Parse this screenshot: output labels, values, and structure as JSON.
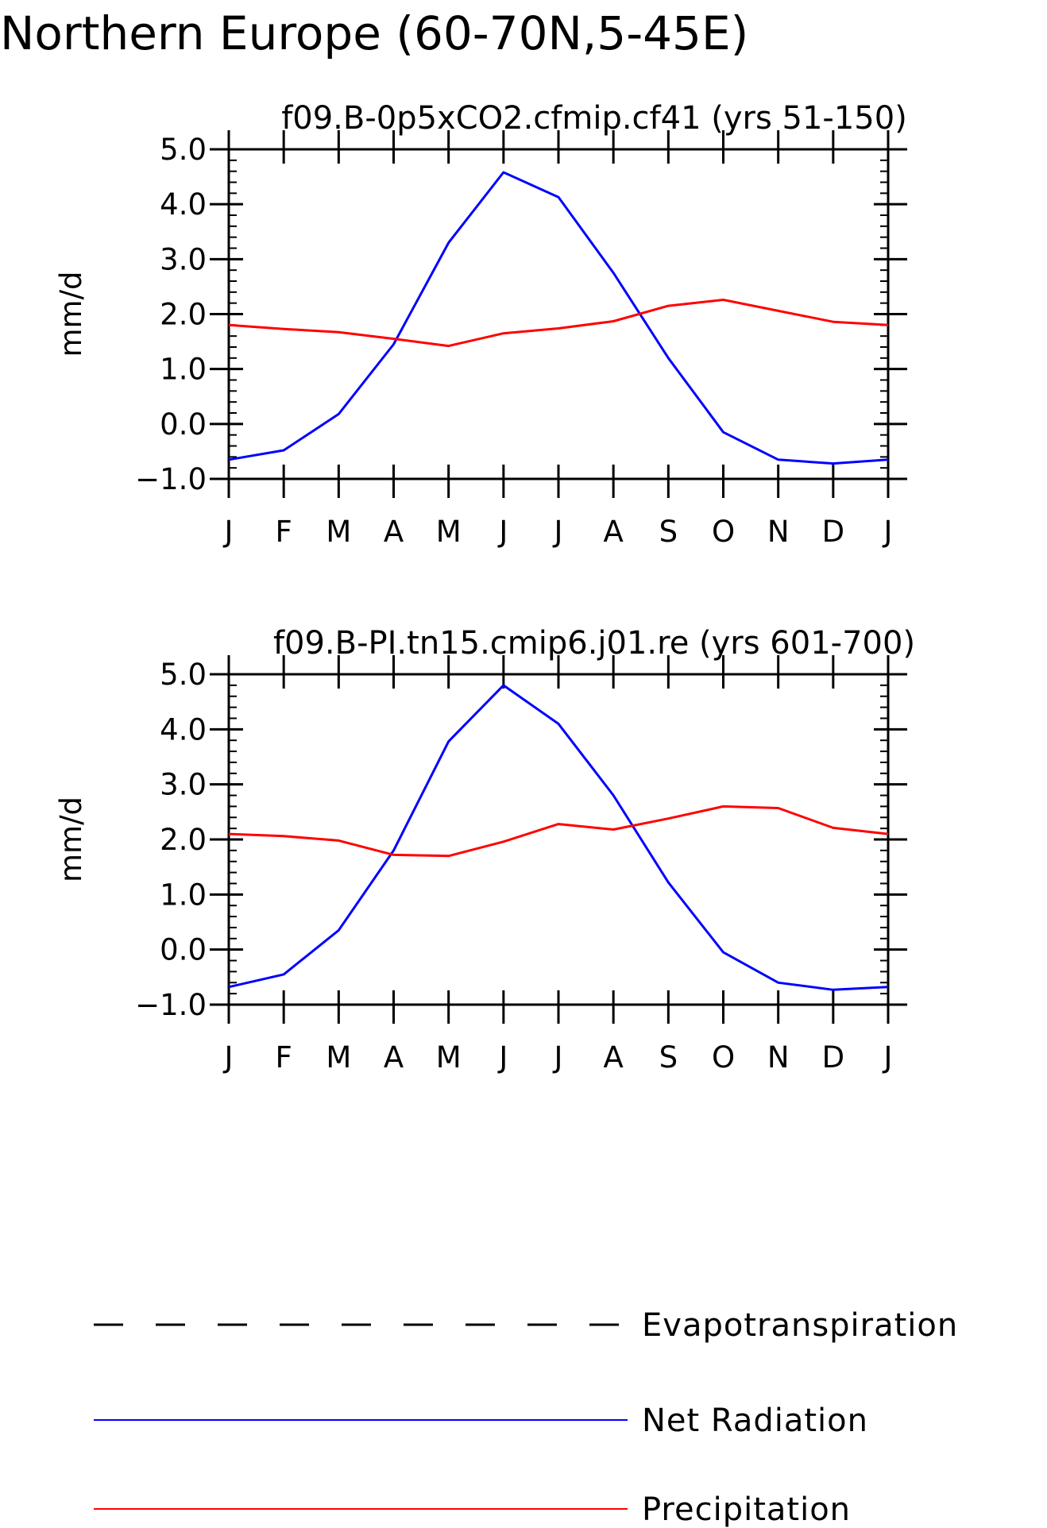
{
  "figure": {
    "title": "Northern Europe (60-70N,5-45E)"
  },
  "chart_data": [
    {
      "type": "line",
      "title": "f09.B-0p5xCO2.cfmip.cf41 (yrs 51-150)",
      "xlabel": "",
      "ylabel": "mm/d",
      "categories": [
        "J",
        "F",
        "M",
        "A",
        "M",
        "J",
        "J",
        "A",
        "S",
        "O",
        "N",
        "D",
        "J"
      ],
      "ylim": [
        -1.0,
        5.0
      ],
      "yticks": [
        "-1.0",
        "0.0",
        "1.0",
        "2.0",
        "3.0",
        "4.0",
        "5.0"
      ],
      "grid": false,
      "series": [
        {
          "name": "Net Radiation",
          "color": "#0000ff",
          "values": [
            -0.65,
            -0.48,
            0.18,
            1.45,
            3.3,
            4.58,
            4.13,
            2.75,
            1.2,
            -0.15,
            -0.65,
            -0.72,
            -0.65
          ]
        },
        {
          "name": "Precipitation",
          "color": "#ff0000",
          "values": [
            1.8,
            1.73,
            1.67,
            1.55,
            1.42,
            1.65,
            1.74,
            1.87,
            2.15,
            2.26,
            2.06,
            1.86,
            1.8
          ]
        }
      ]
    },
    {
      "type": "line",
      "title": "f09.B-PI.tn15.cmip6.j01.re (yrs 601-700)",
      "xlabel": "",
      "ylabel": "mm/d",
      "categories": [
        "J",
        "F",
        "M",
        "A",
        "M",
        "J",
        "J",
        "A",
        "S",
        "O",
        "N",
        "D",
        "J"
      ],
      "ylim": [
        -1.0,
        5.0
      ],
      "yticks": [
        "-1.0",
        "0.0",
        "1.0",
        "2.0",
        "3.0",
        "4.0",
        "5.0"
      ],
      "grid": false,
      "series": [
        {
          "name": "Net Radiation",
          "color": "#0000ff",
          "values": [
            -0.68,
            -0.45,
            0.35,
            1.8,
            3.78,
            4.8,
            4.1,
            2.8,
            1.22,
            -0.05,
            -0.6,
            -0.73,
            -0.68
          ]
        },
        {
          "name": "Precipitation",
          "color": "#ff0000",
          "values": [
            2.1,
            2.06,
            1.98,
            1.72,
            1.7,
            1.96,
            2.28,
            2.18,
            2.38,
            2.6,
            2.57,
            2.21,
            2.1
          ]
        }
      ]
    }
  ],
  "legend": {
    "placement": "bottom",
    "items": [
      {
        "label": "Evapotranspiration",
        "color": "#000000",
        "style": "dashed"
      },
      {
        "label": "Net Radiation",
        "color": "#0000ff",
        "style": "solid"
      },
      {
        "label": "Precipitation",
        "color": "#ff0000",
        "style": "solid"
      }
    ]
  }
}
